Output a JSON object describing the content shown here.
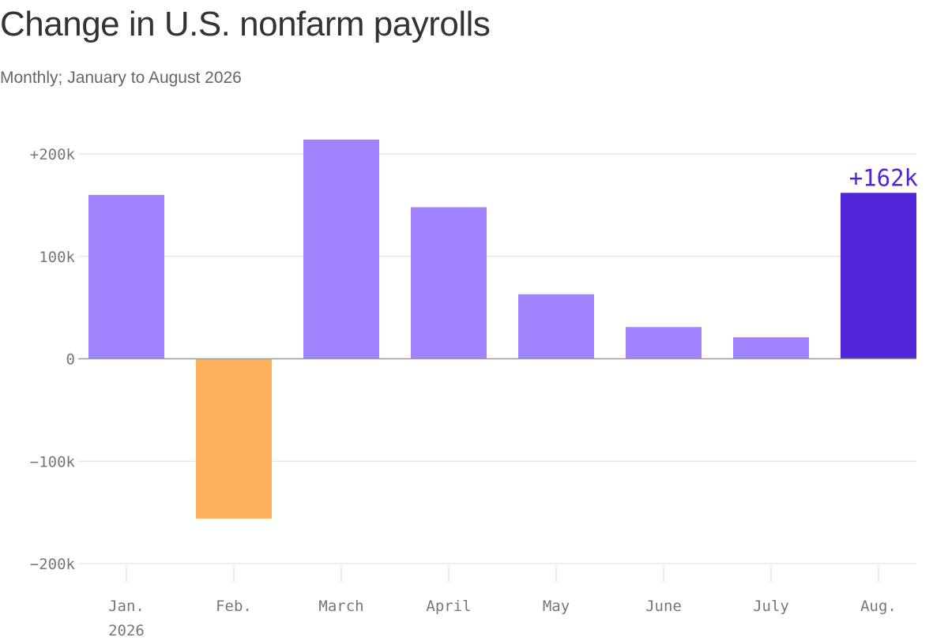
{
  "title": "Change in U.S. nonfarm payrolls",
  "subtitle": "Monthly; January to August 2026",
  "colors": {
    "positive": "#a084ff",
    "negative": "#ffb05c",
    "highlight": "#5224d8",
    "grid": "#dddddd",
    "zero_line": "#9a9a9a",
    "tick_text": "#777777"
  },
  "chart_data": {
    "type": "bar",
    "categories": [
      "Jan. 2026",
      "Feb.",
      "March",
      "April",
      "May",
      "June",
      "July",
      "Aug."
    ],
    "category_labels": [
      [
        "Jan.",
        "2026"
      ],
      [
        "Feb."
      ],
      [
        "March"
      ],
      [
        "April"
      ],
      [
        "May"
      ],
      [
        "June"
      ],
      [
        "July"
      ],
      [
        "Aug."
      ]
    ],
    "values": [
      160,
      -156,
      214,
      148,
      63,
      31,
      21,
      162
    ],
    "value_unit": "thousands of jobs",
    "highlight_index": 7,
    "annotation": {
      "index": 7,
      "text": "+162k"
    },
    "ylim": [
      -200,
      200
    ],
    "yticks": [
      {
        "value": 200,
        "label": "+200k"
      },
      {
        "value": 100,
        "label": "100k"
      },
      {
        "value": 0,
        "label": "0"
      },
      {
        "value": -100,
        "label": "−100k"
      },
      {
        "value": -200,
        "label": "−200k"
      }
    ],
    "grid": true,
    "legend": "none"
  }
}
